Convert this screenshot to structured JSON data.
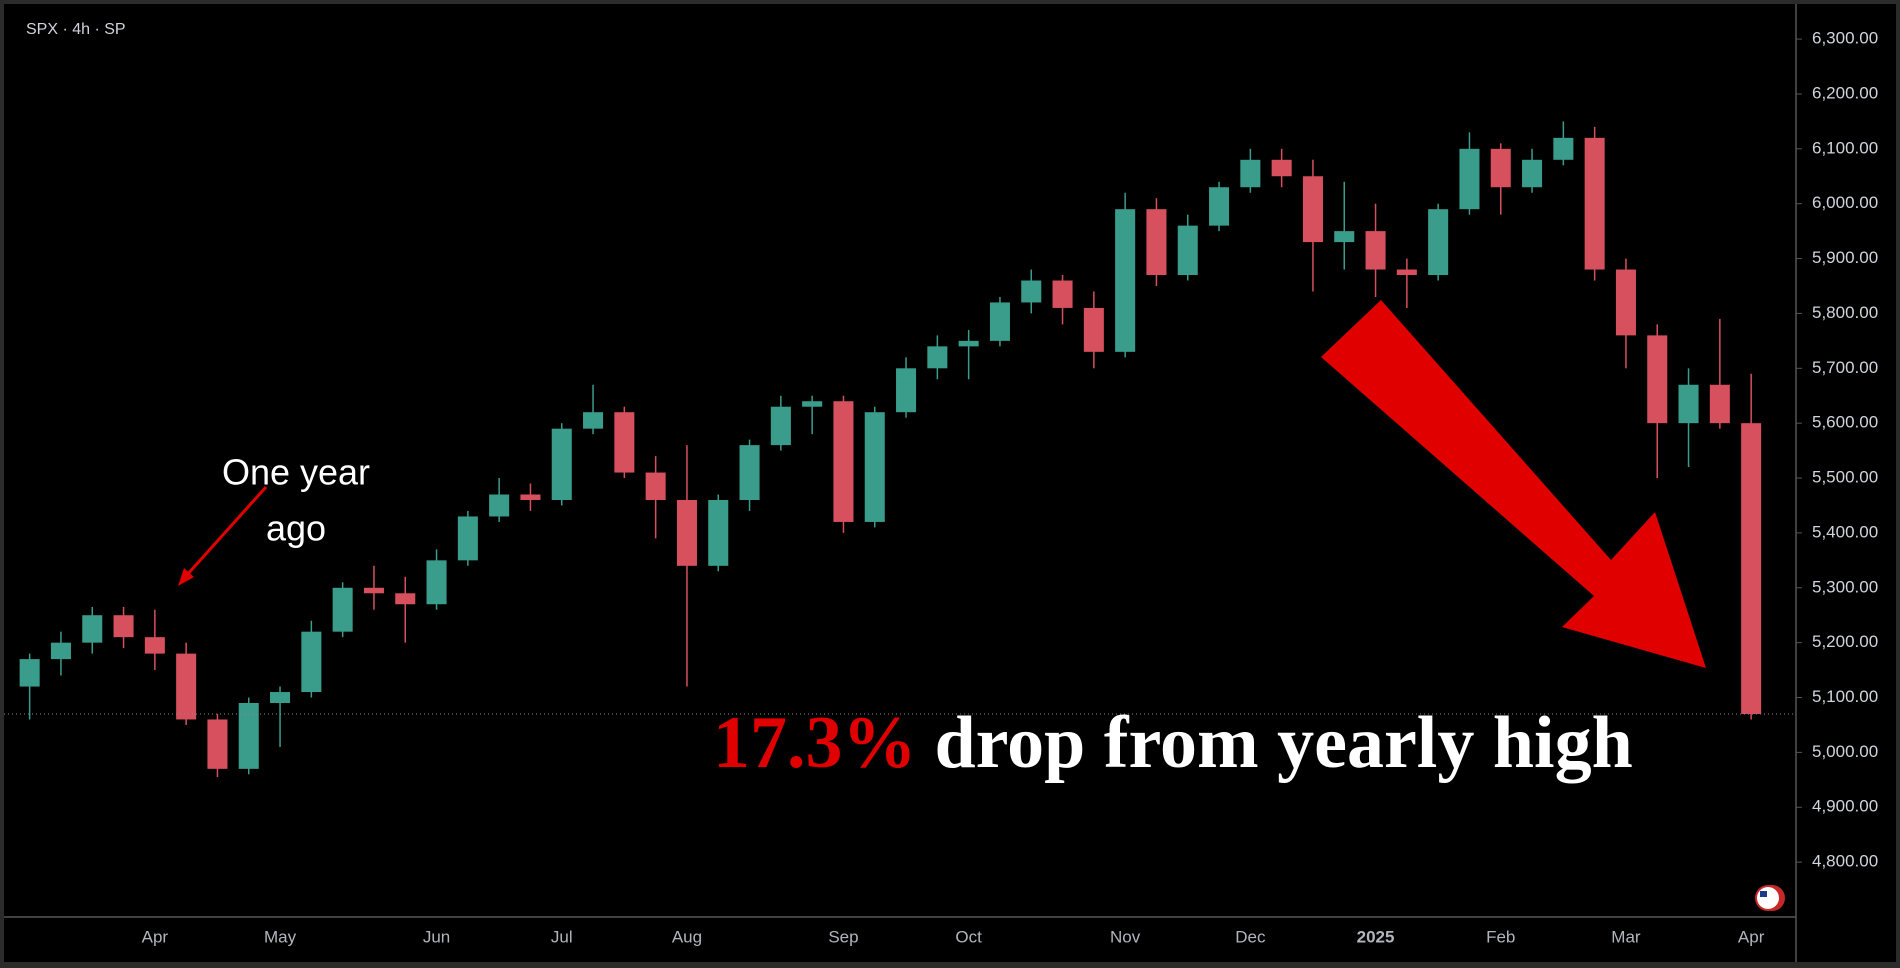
{
  "chart_data": {
    "type": "candlestick",
    "ticker": "SPX · 4h · SP",
    "categories": [
      null,
      null,
      null,
      null,
      "Apr",
      null,
      null,
      null,
      "May",
      null,
      null,
      null,
      null,
      "Jun",
      null,
      null,
      null,
      "Jul",
      null,
      null,
      null,
      "Aug",
      null,
      null,
      null,
      null,
      "Sep",
      null,
      null,
      null,
      "Oct",
      null,
      null,
      null,
      null,
      "Nov",
      null,
      null,
      null,
      "Dec",
      null,
      null,
      null,
      "2025",
      null,
      null,
      null,
      "Feb",
      null,
      null,
      null,
      "Mar",
      null,
      null,
      null,
      "Apr"
    ],
    "open": [
      5120,
      5170,
      5200,
      5250,
      5210,
      5180,
      5060,
      4970,
      5090,
      5110,
      5220,
      5300,
      5290,
      5270,
      5350,
      5430,
      5470,
      5460,
      5590,
      5620,
      5510,
      5460,
      5340,
      5460,
      5560,
      5630,
      5640,
      5420,
      5620,
      5700,
      5740,
      5750,
      5820,
      5860,
      5810,
      5730,
      5990,
      5870,
      5960,
      6030,
      6080,
      6050,
      5930,
      5950,
      5880,
      5870,
      5990,
      6100,
      6030,
      6080,
      6120,
      5880,
      5760,
      5600,
      5670,
      5600
    ],
    "high": [
      5180,
      5220,
      5265,
      5265,
      5260,
      5200,
      5070,
      5100,
      5120,
      5240,
      5310,
      5340,
      5320,
      5370,
      5440,
      5500,
      5490,
      5600,
      5670,
      5630,
      5540,
      5560,
      5470,
      5570,
      5650,
      5650,
      5650,
      5630,
      5720,
      5760,
      5770,
      5830,
      5880,
      5870,
      5840,
      6020,
      6010,
      5980,
      6040,
      6100,
      6100,
      6080,
      6040,
      6000,
      5900,
      6000,
      6130,
      6110,
      6100,
      6150,
      6140,
      5900,
      5780,
      5700,
      5790,
      5690
    ],
    "low": [
      5060,
      5140,
      5180,
      5190,
      5150,
      5050,
      4955,
      4960,
      5010,
      5100,
      5210,
      5260,
      5200,
      5260,
      5340,
      5420,
      5440,
      5450,
      5580,
      5500,
      5390,
      5120,
      5330,
      5440,
      5550,
      5580,
      5400,
      5410,
      5610,
      5680,
      5680,
      5740,
      5800,
      5780,
      5700,
      5720,
      5850,
      5860,
      5950,
      6020,
      6030,
      5840,
      5880,
      5830,
      5810,
      5860,
      5980,
      5980,
      6020,
      6070,
      5860,
      5700,
      5500,
      5520,
      5590,
      5060
    ],
    "close": [
      5170,
      5200,
      5250,
      5210,
      5180,
      5060,
      4970,
      5090,
      5110,
      5220,
      5300,
      5290,
      5270,
      5350,
      5430,
      5470,
      5460,
      5590,
      5620,
      5510,
      5460,
      5340,
      5460,
      5560,
      5630,
      5640,
      5420,
      5620,
      5700,
      5740,
      5750,
      5820,
      5860,
      5810,
      5730,
      5990,
      5870,
      5960,
      6030,
      6080,
      6050,
      5930,
      5950,
      5880,
      5870,
      5990,
      6100,
      6030,
      6080,
      6120,
      5880,
      5760,
      5600,
      5670,
      5600,
      5070
    ],
    "last_price": 5070,
    "up_color": "#3a9d8c",
    "down_color": "#d6505d",
    "ylim": [
      4700,
      6353
    ],
    "yticks": [
      {
        "value": 4800,
        "label": "4,800.00"
      },
      {
        "value": 4900,
        "label": "4,900.00"
      },
      {
        "value": 5000,
        "label": "5,000.00"
      },
      {
        "value": 5100,
        "label": "5,100.00"
      },
      {
        "value": 5200,
        "label": "5,200.00"
      },
      {
        "value": 5300,
        "label": "5,300.00"
      },
      {
        "value": 5400,
        "label": "5,400.00"
      },
      {
        "value": 5500,
        "label": "5,500.00"
      },
      {
        "value": 5600,
        "label": "5,600.00"
      },
      {
        "value": 5700,
        "label": "5,700.00"
      },
      {
        "value": 5800,
        "label": "5,800.00"
      },
      {
        "value": 5900,
        "label": "5,900.00"
      },
      {
        "value": 6000,
        "label": "6,000.00"
      },
      {
        "value": 6100,
        "label": "6,100.00"
      },
      {
        "value": 6200,
        "label": "6,200.00"
      },
      {
        "value": 6300,
        "label": "6,300.00"
      }
    ],
    "annotations": {
      "one_year": [
        "One year",
        "ago"
      ],
      "drop_pct": "17.3%",
      "drop_text": "drop from yearly high"
    }
  }
}
